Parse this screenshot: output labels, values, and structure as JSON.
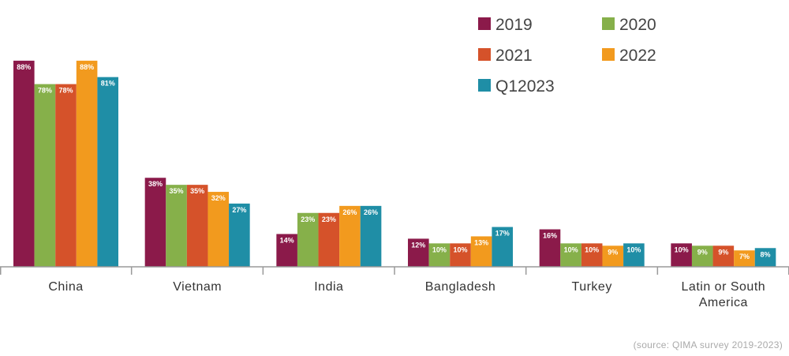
{
  "chart_data": {
    "type": "bar",
    "categories": [
      "China",
      "Vietnam",
      "India",
      "Bangladesh",
      "Turkey",
      "Latin or South America"
    ],
    "series": [
      {
        "name": "2019",
        "color": "#8b1a4a",
        "values": [
          88,
          38,
          14,
          12,
          16,
          10
        ],
        "labels": [
          "88%",
          "38%",
          "14%",
          "12%",
          "16%",
          "10%"
        ]
      },
      {
        "name": "2020",
        "color": "#86b04a",
        "values": [
          78,
          35,
          23,
          10,
          10,
          9
        ],
        "labels": [
          "78%",
          "35%",
          "23%",
          "10%",
          "10%",
          "9%"
        ]
      },
      {
        "name": "2021",
        "color": "#d5522a",
        "values": [
          78,
          35,
          23,
          10,
          10,
          9
        ],
        "labels": [
          "78%",
          "35%",
          "23%",
          "10%",
          "10%",
          "9%"
        ]
      },
      {
        "name": "2022",
        "color": "#f29a1e",
        "values": [
          88,
          32,
          26,
          13,
          9,
          7
        ],
        "labels": [
          "88%",
          "32%",
          "26%",
          "13%",
          "9%",
          "7%"
        ]
      },
      {
        "name": "Q12023",
        "color": "#1f8ea6",
        "values": [
          81,
          27,
          26,
          17,
          10,
          8
        ],
        "labels": [
          "81%",
          "27%",
          "26%",
          "17%",
          "10%",
          "8%"
        ]
      }
    ],
    "ylim": [
      0,
      100
    ],
    "grid": false,
    "legend_position": "top-right",
    "source": "(source: QIMA survey 2019-2023)"
  }
}
